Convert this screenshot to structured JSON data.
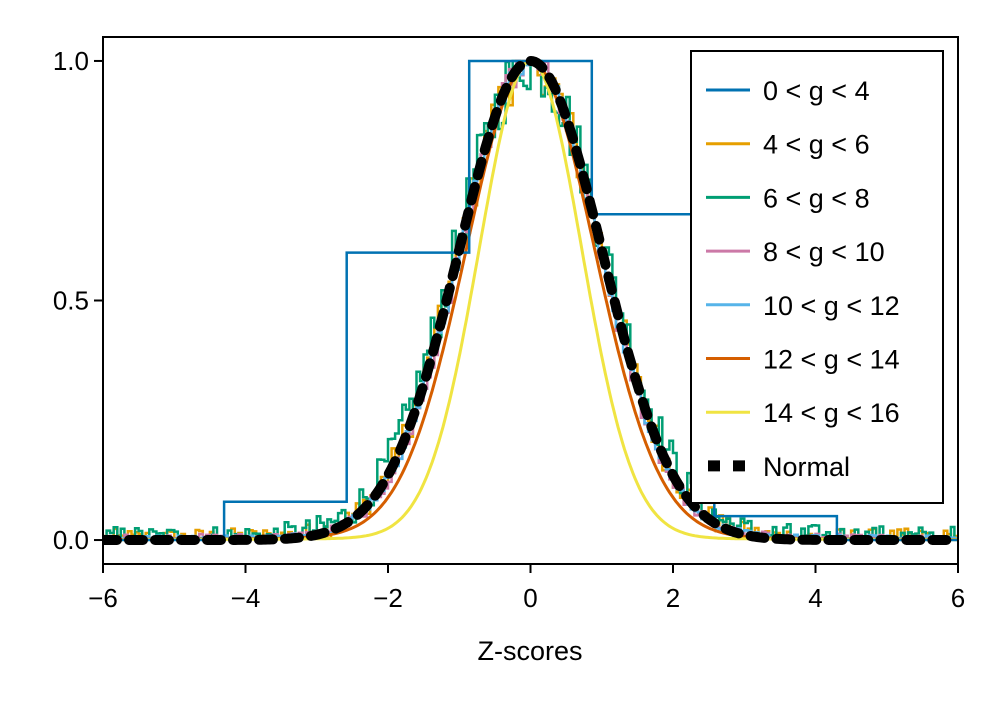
{
  "chart_data": {
    "type": "line",
    "title": "",
    "xlabel": "Z-scores",
    "ylabel": "",
    "xlim": [
      -6,
      6
    ],
    "ylim": [
      -0.05,
      1.05
    ],
    "x_ticks": [
      -6,
      -4,
      -2,
      0,
      2,
      4,
      6
    ],
    "x_tick_labels": [
      "−6",
      "−4",
      "−2",
      "0",
      "2",
      "4",
      "6"
    ],
    "y_ticks": [
      0.0,
      0.5,
      1.0
    ],
    "y_tick_labels": [
      "0.0",
      "0.5",
      "1.0"
    ],
    "grid": false,
    "legend_position": "top-right",
    "series": [
      {
        "name": "0 < g < 4",
        "label": "0 < g < 4",
        "color": "#0072B2",
        "style": "step",
        "bin_edges": [
          -6,
          -4.3,
          -2.58,
          -0.86,
          0.86,
          2.58,
          4.3,
          6
        ],
        "values": [
          0.0,
          0.08,
          0.6,
          1.0,
          0.68,
          0.05,
          0.0
        ]
      },
      {
        "name": "4 < g < 6",
        "label": "4 < g < 6",
        "color": "#E69F00",
        "style": "noisy-step",
        "sigma": 1.0,
        "tail": 0.018,
        "noise": 0.04
      },
      {
        "name": "6 < g < 8",
        "label": "6 < g < 8",
        "color": "#009E73",
        "style": "noisy-step",
        "sigma": 1.04,
        "tail": 0.025,
        "noise": 0.05
      },
      {
        "name": "8 < g < 10",
        "label": "8 < g < 10",
        "color": "#CC79A7",
        "style": "noisy-step",
        "sigma": 0.97,
        "tail": 0.015,
        "noise": 0.02
      },
      {
        "name": "10 < g < 12",
        "label": "10 < g < 12",
        "color": "#56B4E9",
        "style": "noisy-step",
        "sigma": 0.98,
        "tail": 0.015,
        "noise": 0.015
      },
      {
        "name": "12 < g < 14",
        "label": "12 < g < 14",
        "color": "#D55E00",
        "style": "smooth",
        "sigma": 0.9,
        "tail": 0.012
      },
      {
        "name": "14 < g < 16",
        "label": "14 < g < 16",
        "color": "#F0E442",
        "style": "smooth",
        "sigma": 0.72,
        "tail": 0.008
      },
      {
        "name": "Normal",
        "label": "Normal",
        "color": "#000000",
        "style": "dashed",
        "sigma": 1.0,
        "tail": 0.0
      }
    ]
  }
}
